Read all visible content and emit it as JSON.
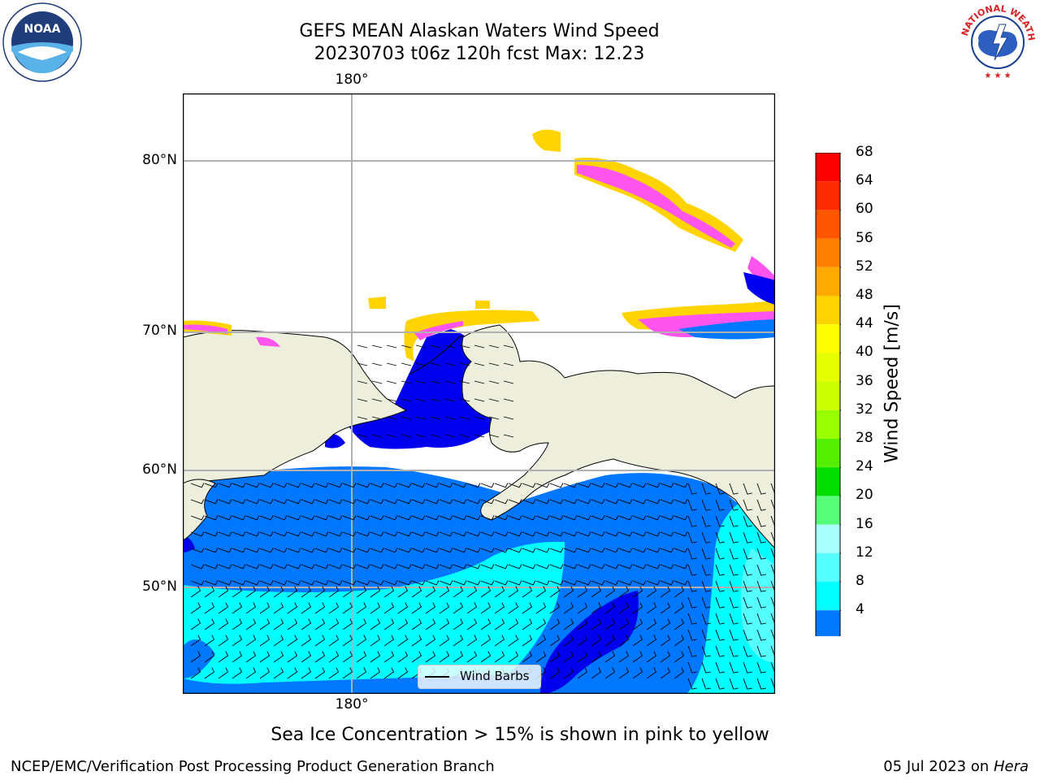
{
  "title_line1": "GEFS MEAN Alaskan Waters Wind Speed",
  "title_line2": "20230703 t06z 120h fcst   Max: 12.23",
  "lon_top_label": "180°",
  "lon_bottom_label": "180°",
  "lat_labels": [
    "80°N",
    "70°N",
    "60°N",
    "50°N"
  ],
  "colorbar": {
    "label": "Wind Speed [m/s]",
    "ticks": [
      "68",
      "64",
      "60",
      "56",
      "52",
      "48",
      "44",
      "40",
      "36",
      "32",
      "28",
      "24",
      "20",
      "16",
      "12",
      "8",
      "4"
    ],
    "colors": [
      "#ff0000",
      "#ff2a00",
      "#ff5500",
      "#ff7f00",
      "#ffaa00",
      "#ffd400",
      "#ffff00",
      "#e6ff00",
      "#ccff00",
      "#99ff00",
      "#55ee00",
      "#00dd00",
      "#55ff77",
      "#aaffff",
      "#55ffff",
      "#00ffff",
      "#0077ff"
    ],
    "under_color": "#0000ee"
  },
  "legend_label": "Wind Barbs",
  "note": "Sea Ice Concentration > 15% is shown in pink to yellow",
  "footer_left": "NCEP/EMC/Verification Post Processing Product Generation Branch",
  "footer_right_date": "05 Jul 2023 on ",
  "footer_right_machine": "Hera",
  "noaa_logo_text": "NOAA",
  "nws_logo_text": "NATIONAL WEATHER SERVICE"
}
